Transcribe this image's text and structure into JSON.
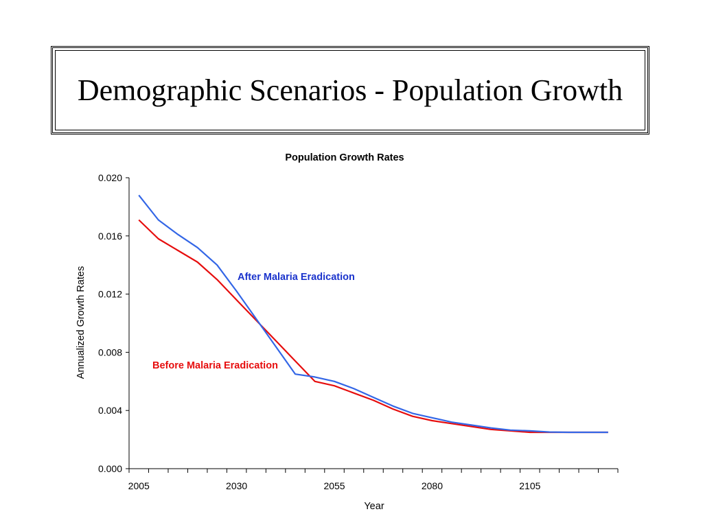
{
  "slide": {
    "title": "Demographic Scenarios - Population Growth"
  },
  "chart_data": {
    "type": "line",
    "title": "Population Growth Rates",
    "xlabel": "Year",
    "ylabel": "Annualized Growth Rates",
    "xlim": [
      2002.5,
      2127.5
    ],
    "ylim": [
      0.0,
      0.02
    ],
    "x_ticks": [
      "2005",
      "2030",
      "2055",
      "2080",
      "2105"
    ],
    "y_ticks": [
      "0.000",
      "0.004",
      "0.008",
      "0.012",
      "0.016",
      "0.020"
    ],
    "grid": false,
    "x": [
      2005,
      2010,
      2015,
      2020,
      2025,
      2030,
      2035,
      2040,
      2045,
      2050,
      2055,
      2060,
      2065,
      2070,
      2075,
      2080,
      2085,
      2090,
      2095,
      2100,
      2105,
      2110,
      2115,
      2120,
      2125
    ],
    "series": [
      {
        "name": "After Malaria Eradication",
        "color": "#3366e6",
        "values": [
          0.0188,
          0.0171,
          0.0161,
          0.0152,
          0.014,
          0.0122,
          0.0103,
          0.0084,
          0.0065,
          0.0063,
          0.006,
          0.0055,
          0.0049,
          0.0043,
          0.0038,
          0.0035,
          0.0032,
          0.003,
          0.0028,
          0.00265,
          0.0026,
          0.00252,
          0.0025,
          0.0025,
          0.0025
        ]
      },
      {
        "name": "Before Malaria Eradication",
        "color": "#e60d0d",
        "values": [
          0.0171,
          0.0158,
          0.015,
          0.0142,
          0.013,
          0.0116,
          0.0102,
          0.0088,
          0.0074,
          0.006,
          0.0057,
          0.0052,
          0.0047,
          0.0041,
          0.0036,
          0.0033,
          0.0031,
          0.0029,
          0.0027,
          0.0026,
          0.0025,
          0.0025,
          0.0025,
          0.0025,
          0.0025
        ]
      }
    ]
  }
}
